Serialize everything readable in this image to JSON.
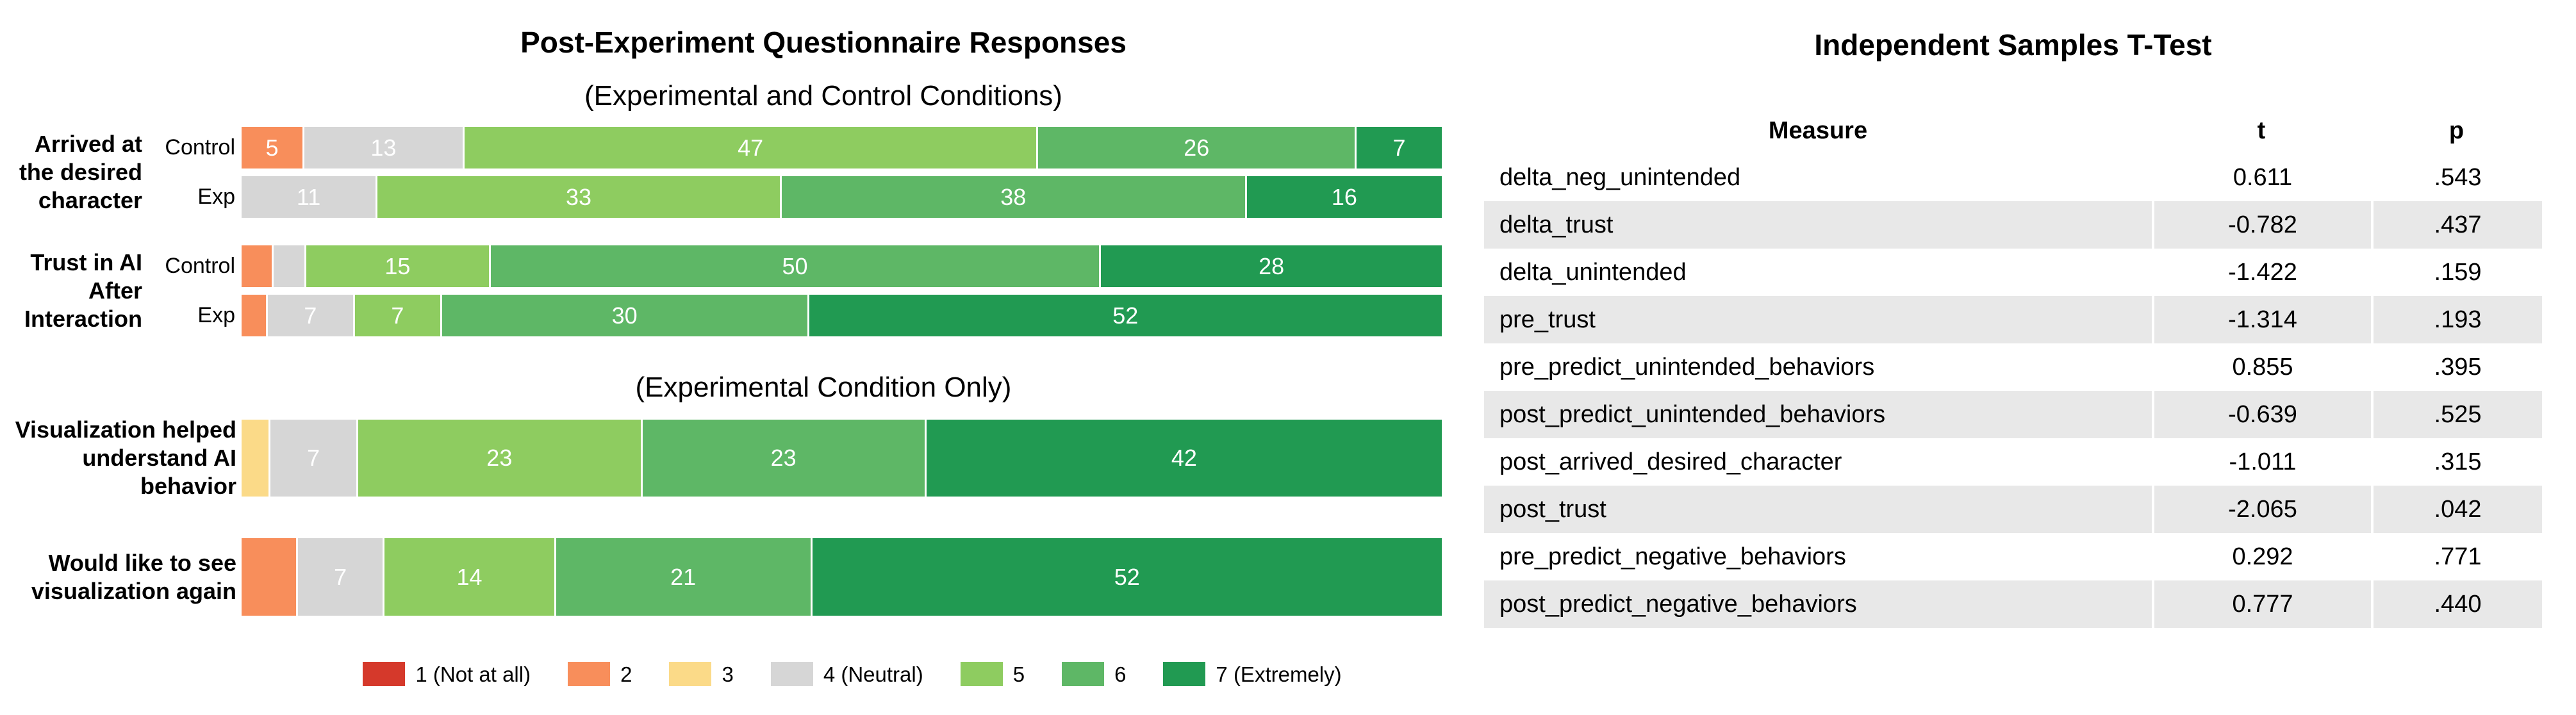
{
  "colors": {
    "levels": {
      "1": "#d5392b",
      "2": "#f88e5b",
      "3": "#fbda88",
      "4": "#d6d6d6",
      "5": "#8ecc60",
      "6": "#5eb766",
      "7": "#219a52"
    },
    "table_stripe": "#e8e8e8",
    "bar_value_text": "#ffffff"
  },
  "chart_data": [
    {
      "type": "bar",
      "variant": "horizontal_stacked_likert_percent",
      "title": "Post-Experiment Questionnaire Responses",
      "xlabel": "",
      "ylabel": "",
      "grid": false,
      "legend_position": "bottom",
      "legend": [
        {
          "level": "1",
          "label": "1 (Not at all)"
        },
        {
          "level": "2",
          "label": "2"
        },
        {
          "level": "3",
          "label": "3"
        },
        {
          "level": "4",
          "label": "4 (Neutral)"
        },
        {
          "level": "5",
          "label": "5"
        },
        {
          "level": "6",
          "label": "6"
        },
        {
          "level": "7",
          "label": "7 (Extremely)"
        }
      ],
      "sections": [
        {
          "subtitle": "(Experimental and Control Conditions)",
          "rows": [
            {
              "question": "Arrived at the desired character",
              "question_lines": [
                "Arrived at",
                "the desired",
                "character"
              ],
              "condition": "Control",
              "show_condition": true,
              "segments": [
                {
                  "level": "2",
                  "value": 5,
                  "label": "5"
                },
                {
                  "level": "4",
                  "value": 13,
                  "label": "13"
                },
                {
                  "level": "5",
                  "value": 47,
                  "label": "47"
                },
                {
                  "level": "6",
                  "value": 26,
                  "label": "26"
                },
                {
                  "level": "7",
                  "value": 7,
                  "label": "7"
                }
              ]
            },
            {
              "question": "Arrived at the desired character",
              "question_lines": null,
              "condition": "Exp",
              "show_condition": true,
              "segments": [
                {
                  "level": "4",
                  "value": 11,
                  "label": "11"
                },
                {
                  "level": "5",
                  "value": 33,
                  "label": "33"
                },
                {
                  "level": "6",
                  "value": 38,
                  "label": "38"
                },
                {
                  "level": "7",
                  "value": 16,
                  "label": "16"
                }
              ]
            },
            {
              "question": "Trust in AI After Interaction",
              "question_lines": [
                "Trust in AI",
                "After",
                "Interaction"
              ],
              "condition": "Control",
              "show_condition": true,
              "segments": [
                {
                  "level": "2",
                  "value": 2.5,
                  "label": ""
                },
                {
                  "level": "4",
                  "value": 2.5,
                  "label": ""
                },
                {
                  "level": "5",
                  "value": 15,
                  "label": "15"
                },
                {
                  "level": "6",
                  "value": 50,
                  "label": "50"
                },
                {
                  "level": "7",
                  "value": 28,
                  "label": "28"
                }
              ]
            },
            {
              "question": "Trust in AI After Interaction",
              "question_lines": null,
              "condition": "Exp",
              "show_condition": true,
              "segments": [
                {
                  "level": "2",
                  "value": 2,
                  "label": ""
                },
                {
                  "level": "4",
                  "value": 7,
                  "label": "7"
                },
                {
                  "level": "5",
                  "value": 7,
                  "label": "7"
                },
                {
                  "level": "6",
                  "value": 30,
                  "label": "30"
                },
                {
                  "level": "7",
                  "value": 52,
                  "label": "52"
                }
              ]
            }
          ]
        },
        {
          "subtitle": "(Experimental Condition Only)",
          "rows": [
            {
              "question": "Visualization helped understand AI behavior",
              "question_lines": [
                "Visualization helped",
                "understand AI",
                "behavior"
              ],
              "condition": "Exp",
              "show_condition": false,
              "segments": [
                {
                  "level": "3",
                  "value": 2.2,
                  "label": ""
                },
                {
                  "level": "4",
                  "value": 7,
                  "label": "7"
                },
                {
                  "level": "5",
                  "value": 23,
                  "label": "23"
                },
                {
                  "level": "6",
                  "value": 23,
                  "label": "23"
                },
                {
                  "level": "7",
                  "value": 42,
                  "label": "42"
                }
              ]
            },
            {
              "question": "Would like to see visualization again",
              "question_lines": [
                "Would like to see",
                "visualization again"
              ],
              "condition": "Exp",
              "show_condition": false,
              "segments": [
                {
                  "level": "2",
                  "value": 4.5,
                  "label": ""
                },
                {
                  "level": "4",
                  "value": 7,
                  "label": "7"
                },
                {
                  "level": "5",
                  "value": 14,
                  "label": "14"
                },
                {
                  "level": "6",
                  "value": 21,
                  "label": "21"
                },
                {
                  "level": "7",
                  "value": 52,
                  "label": "52"
                }
              ]
            }
          ]
        }
      ]
    },
    {
      "type": "table",
      "title": "Independent Samples T-Test",
      "columns": [
        "Measure",
        "t",
        "p"
      ],
      "rows": [
        {
          "measure": "delta_neg_unintended",
          "t": "0.611",
          "p": ".543"
        },
        {
          "measure": "delta_trust",
          "t": "-0.782",
          "p": ".437"
        },
        {
          "measure": "delta_unintended",
          "t": "-1.422",
          "p": ".159"
        },
        {
          "measure": "pre_trust",
          "t": "-1.314",
          "p": ".193"
        },
        {
          "measure": "pre_predict_unintended_behaviors",
          "t": "0.855",
          "p": ".395"
        },
        {
          "measure": "post_predict_unintended_behaviors",
          "t": "-0.639",
          "p": ".525"
        },
        {
          "measure": "post_arrived_desired_character",
          "t": "-1.011",
          "p": ".315"
        },
        {
          "measure": "post_trust",
          "t": "-2.065",
          "p": ".042"
        },
        {
          "measure": "pre_predict_negative_behaviors",
          "t": "0.292",
          "p": ".771"
        },
        {
          "measure": "post_predict_negative_behaviors",
          "t": "0.777",
          "p": ".440"
        }
      ]
    }
  ]
}
